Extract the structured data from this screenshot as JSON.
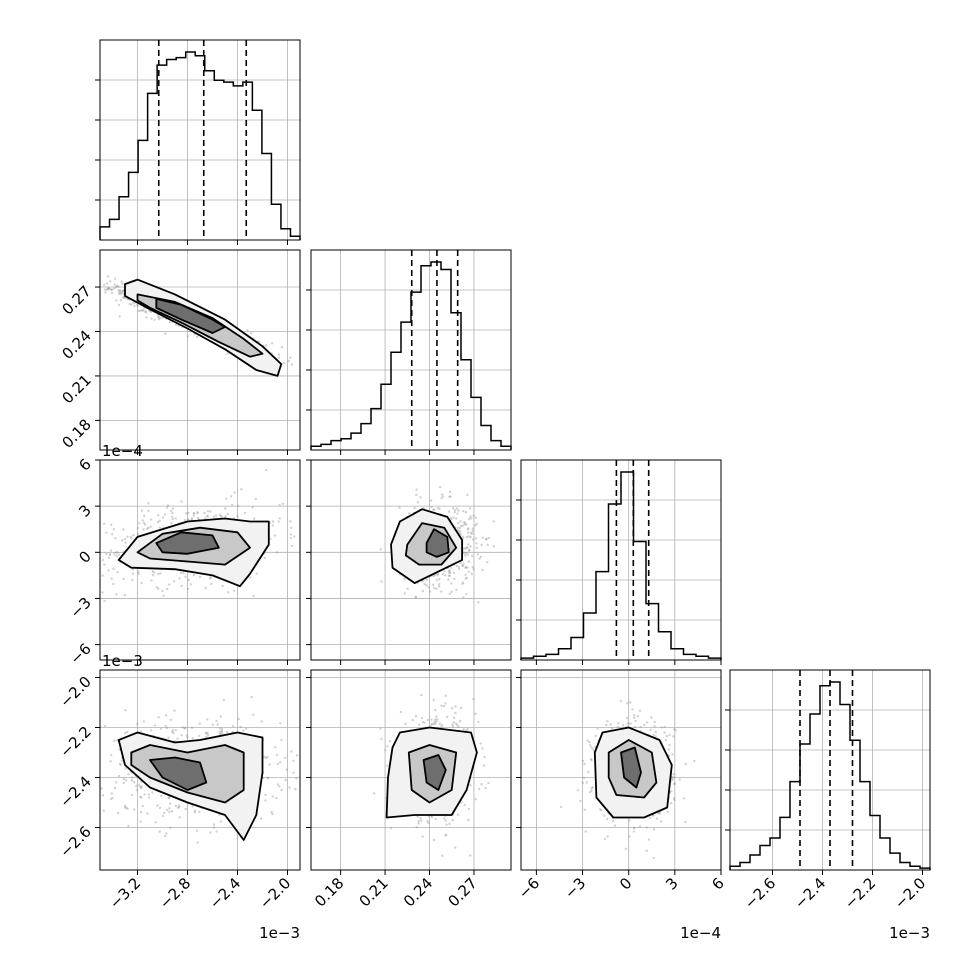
{
  "chart_data": {
    "type": "corner",
    "parameters": [
      {
        "range": [
          -3.5,
          -1.9
        ],
        "ticks": [
          -3.2,
          -2.8,
          -2.4,
          -2.0
        ],
        "tick_labels": [
          "−3.2",
          "−2.8",
          "−2.4",
          "−2.0"
        ],
        "offset": "1e−3",
        "quantiles": [
          -3.03,
          -2.67,
          -2.33
        ]
      },
      {
        "range": [
          0.16,
          0.295
        ],
        "ticks": [
          0.18,
          0.21,
          0.24,
          0.27
        ],
        "tick_labels": [
          "0.18",
          "0.21",
          "0.24",
          "0.27"
        ],
        "offset": "",
        "quantiles": [
          0.228,
          0.245,
          0.259
        ]
      },
      {
        "range": [
          -7,
          6
        ],
        "ticks": [
          -6,
          -3,
          0,
          3,
          6
        ],
        "tick_labels": [
          "−6",
          "−3",
          "0",
          "3",
          "6"
        ],
        "offset": "1e−4",
        "quantiles": [
          -0.8,
          0.3,
          1.3
        ]
      },
      {
        "range": [
          -2.77,
          -1.97
        ],
        "ticks": [
          -2.6,
          -2.4,
          -2.2,
          -2.0
        ],
        "tick_labels": [
          "−2.6",
          "−2.4",
          "−2.2",
          "−2.0"
        ],
        "offset": "1e−3",
        "quantiles": [
          -2.49,
          -2.37,
          -2.28
        ]
      }
    ],
    "histograms": [
      [
        0.07,
        0.11,
        0.23,
        0.36,
        0.53,
        0.78,
        0.93,
        0.96,
        0.97,
        1.0,
        0.98,
        0.9,
        0.85,
        0.84,
        0.82,
        0.84,
        0.69,
        0.46,
        0.19,
        0.06,
        0.02
      ],
      [
        0.02,
        0.03,
        0.05,
        0.06,
        0.09,
        0.14,
        0.22,
        0.35,
        0.52,
        0.68,
        0.84,
        0.98,
        1.0,
        0.96,
        0.73,
        0.48,
        0.28,
        0.13,
        0.05,
        0.02
      ],
      [
        0.01,
        0.02,
        0.03,
        0.06,
        0.12,
        0.25,
        0.47,
        0.83,
        1.0,
        0.63,
        0.3,
        0.15,
        0.06,
        0.03,
        0.02,
        0.01
      ],
      [
        0.02,
        0.04,
        0.08,
        0.13,
        0.17,
        0.28,
        0.47,
        0.67,
        0.83,
        0.98,
        1.0,
        0.88,
        0.69,
        0.47,
        0.29,
        0.17,
        0.09,
        0.04,
        0.02,
        0.01
      ]
    ],
    "blobs": [
      {
        "row": 1,
        "col": 0,
        "cx": -2.8,
        "cy": 0.248,
        "sx": 0.35,
        "sy": 0.013,
        "rho": -0.95
      },
      {
        "row": 2,
        "col": 0,
        "cx": -2.75,
        "cy": 0.5,
        "sx": 0.35,
        "sy": 1.3,
        "rho": 0.25
      },
      {
        "row": 2,
        "col": 1,
        "cx": 0.246,
        "cy": 0.5,
        "sx": 0.013,
        "sy": 1.3,
        "rho": 0.0
      },
      {
        "row": 3,
        "col": 0,
        "cx": -2.75,
        "cy": -2.37,
        "sx": 0.35,
        "sy": 0.1,
        "rho": 0.0
      },
      {
        "row": 3,
        "col": 1,
        "cx": 0.246,
        "cy": -2.37,
        "sx": 0.013,
        "sy": 0.1,
        "rho": 0.0
      },
      {
        "row": 3,
        "col": 2,
        "cx": 0.3,
        "cy": -2.37,
        "sx": 1.3,
        "sy": 0.1,
        "rho": 0.0
      }
    ],
    "contours": [
      {
        "row": 1,
        "col": 0,
        "levels": [
          [
            [
              -3.3,
              0.272
            ],
            [
              -3.2,
              0.275
            ],
            [
              -2.9,
              0.265
            ],
            [
              -2.5,
              0.248
            ],
            [
              -2.2,
              0.23
            ],
            [
              -2.05,
              0.218
            ],
            [
              -2.08,
              0.21
            ],
            [
              -2.25,
              0.214
            ],
            [
              -2.5,
              0.228
            ],
            [
              -2.8,
              0.242
            ],
            [
              -3.1,
              0.255
            ],
            [
              -3.3,
              0.264
            ]
          ],
          [
            [
              -3.2,
              0.265
            ],
            [
              -2.9,
              0.26
            ],
            [
              -2.6,
              0.249
            ],
            [
              -2.35,
              0.235
            ],
            [
              -2.2,
              0.225
            ],
            [
              -2.3,
              0.223
            ],
            [
              -2.55,
              0.233
            ],
            [
              -2.85,
              0.246
            ],
            [
              -3.1,
              0.256
            ],
            [
              -3.2,
              0.261
            ]
          ],
          [
            [
              -3.05,
              0.262
            ],
            [
              -2.85,
              0.258
            ],
            [
              -2.6,
              0.248
            ],
            [
              -2.5,
              0.243
            ],
            [
              -2.6,
              0.239
            ],
            [
              -2.85,
              0.248
            ],
            [
              -3.05,
              0.256
            ]
          ]
        ]
      },
      {
        "row": 2,
        "col": 0,
        "levels": [
          [
            [
              -3.35,
              -0.5
            ],
            [
              -3.2,
              1.0
            ],
            [
              -2.8,
              2.0
            ],
            [
              -2.5,
              2.2
            ],
            [
              -2.3,
              2.0
            ],
            [
              -2.15,
              2.0
            ],
            [
              -2.15,
              0.5
            ],
            [
              -2.3,
              -1.4
            ],
            [
              -2.38,
              -2.2
            ],
            [
              -2.6,
              -1.5
            ],
            [
              -2.9,
              -1.1
            ],
            [
              -3.25,
              -1.0
            ]
          ],
          [
            [
              -3.2,
              0.0
            ],
            [
              -3.0,
              1.2
            ],
            [
              -2.7,
              1.6
            ],
            [
              -2.4,
              1.3
            ],
            [
              -2.3,
              0.3
            ],
            [
              -2.5,
              -0.8
            ],
            [
              -2.8,
              -0.6
            ],
            [
              -3.1,
              -0.4
            ]
          ],
          [
            [
              -3.05,
              0.6
            ],
            [
              -2.85,
              1.3
            ],
            [
              -2.6,
              1.1
            ],
            [
              -2.55,
              0.3
            ],
            [
              -2.8,
              -0.1
            ],
            [
              -3.0,
              0.0
            ]
          ]
        ]
      },
      {
        "row": 2,
        "col": 1,
        "levels": [
          [
            [
              0.214,
              0.5
            ],
            [
              0.22,
              2.0
            ],
            [
              0.235,
              2.8
            ],
            [
              0.252,
              2.3
            ],
            [
              0.262,
              0.8
            ],
            [
              0.262,
              -0.5
            ],
            [
              0.247,
              -1.2
            ],
            [
              0.23,
              -2.0
            ],
            [
              0.215,
              -1.0
            ]
          ],
          [
            [
              0.225,
              0.5
            ],
            [
              0.235,
              1.9
            ],
            [
              0.25,
              1.6
            ],
            [
              0.258,
              0.3
            ],
            [
              0.248,
              -0.8
            ],
            [
              0.233,
              -0.8
            ],
            [
              0.224,
              -0.2
            ]
          ],
          [
            [
              0.238,
              0.6
            ],
            [
              0.243,
              1.5
            ],
            [
              0.252,
              1.0
            ],
            [
              0.253,
              0.0
            ],
            [
              0.245,
              -0.3
            ],
            [
              0.238,
              0.0
            ]
          ]
        ]
      },
      {
        "row": 3,
        "col": 0,
        "levels": [
          [
            [
              -3.35,
              -2.25
            ],
            [
              -3.2,
              -2.22
            ],
            [
              -2.9,
              -2.26
            ],
            [
              -2.7,
              -2.25
            ],
            [
              -2.4,
              -2.22
            ],
            [
              -2.2,
              -2.24
            ],
            [
              -2.2,
              -2.38
            ],
            [
              -2.25,
              -2.55
            ],
            [
              -2.35,
              -2.65
            ],
            [
              -2.5,
              -2.55
            ],
            [
              -2.8,
              -2.5
            ],
            [
              -3.1,
              -2.44
            ],
            [
              -3.3,
              -2.35
            ]
          ],
          [
            [
              -3.25,
              -2.3
            ],
            [
              -3.1,
              -2.27
            ],
            [
              -2.8,
              -2.3
            ],
            [
              -2.5,
              -2.27
            ],
            [
              -2.35,
              -2.3
            ],
            [
              -2.35,
              -2.45
            ],
            [
              -2.5,
              -2.5
            ],
            [
              -2.8,
              -2.46
            ],
            [
              -3.1,
              -2.4
            ],
            [
              -3.25,
              -2.35
            ]
          ],
          [
            [
              -3.1,
              -2.33
            ],
            [
              -2.9,
              -2.32
            ],
            [
              -2.7,
              -2.34
            ],
            [
              -2.65,
              -2.42
            ],
            [
              -2.8,
              -2.45
            ],
            [
              -3.0,
              -2.4
            ]
          ]
        ]
      },
      {
        "row": 3,
        "col": 1,
        "levels": [
          [
            [
              0.215,
              -2.28
            ],
            [
              0.22,
              -2.22
            ],
            [
              0.24,
              -2.2
            ],
            [
              0.268,
              -2.22
            ],
            [
              0.272,
              -2.3
            ],
            [
              0.265,
              -2.45
            ],
            [
              0.255,
              -2.55
            ],
            [
              0.23,
              -2.55
            ],
            [
              0.211,
              -2.56
            ],
            [
              0.212,
              -2.4
            ]
          ],
          [
            [
              0.226,
              -2.3
            ],
            [
              0.24,
              -2.27
            ],
            [
              0.258,
              -2.3
            ],
            [
              0.255,
              -2.45
            ],
            [
              0.24,
              -2.5
            ],
            [
              0.228,
              -2.45
            ]
          ],
          [
            [
              0.236,
              -2.33
            ],
            [
              0.246,
              -2.31
            ],
            [
              0.251,
              -2.37
            ],
            [
              0.246,
              -2.45
            ],
            [
              0.238,
              -2.42
            ]
          ]
        ]
      },
      {
        "row": 3,
        "col": 2,
        "levels": [
          [
            [
              -2.2,
              -2.3
            ],
            [
              -1.7,
              -2.22
            ],
            [
              0.0,
              -2.2
            ],
            [
              2.0,
              -2.25
            ],
            [
              2.8,
              -2.35
            ],
            [
              2.5,
              -2.52
            ],
            [
              1.0,
              -2.56
            ],
            [
              -1.0,
              -2.56
            ],
            [
              -2.1,
              -2.48
            ]
          ],
          [
            [
              -1.3,
              -2.3
            ],
            [
              0.0,
              -2.25
            ],
            [
              1.5,
              -2.3
            ],
            [
              1.8,
              -2.42
            ],
            [
              1.0,
              -2.48
            ],
            [
              -0.8,
              -2.47
            ],
            [
              -1.3,
              -2.4
            ]
          ],
          [
            [
              -0.5,
              -2.3
            ],
            [
              0.4,
              -2.28
            ],
            [
              0.8,
              -2.38
            ],
            [
              0.5,
              -2.44
            ],
            [
              -0.3,
              -2.4
            ]
          ]
        ]
      }
    ]
  }
}
